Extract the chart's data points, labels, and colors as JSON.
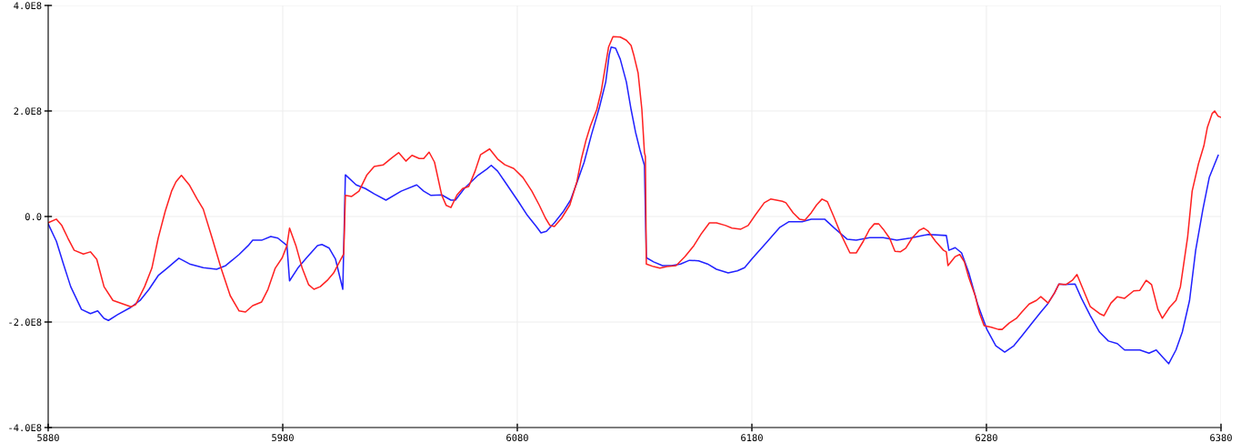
{
  "chart_data": {
    "type": "line",
    "xlim": [
      5880,
      6380
    ],
    "xticks": [
      5880,
      5980,
      6080,
      6180,
      6280,
      6380
    ],
    "ylim": [
      -400000000.0,
      400000000.0
    ],
    "yticks": [
      {
        "value": -400000000.0,
        "label": "-4.0E8"
      },
      {
        "value": -200000000.0,
        "label": "-2.0E8"
      },
      {
        "value": 0,
        "label": "0.0"
      },
      {
        "value": 200000000.0,
        "label": "2.0E8"
      },
      {
        "value": 400000000.0,
        "label": "4.0E8"
      }
    ],
    "grid": true,
    "marker": "none",
    "line_style": "solid",
    "series": [
      {
        "color": "#2222ff",
        "x": [
          5880,
          5883.5,
          5886.5,
          5889.6,
          5894.2,
          5898,
          5901.1,
          5903.8,
          5905.7,
          5909.6,
          5915.3,
          5919.2,
          5923,
          5926.9,
          5930.7,
          5935.7,
          5940.3,
          5946.1,
          5951.8,
          5955.7,
          5961.4,
          5965.3,
          5967.2,
          5971,
          5974.9,
          5977.9,
          5981.8,
          5982.9,
          5986.4,
          5990.2,
          5994.8,
          5996.7,
          5999.8,
          6002.5,
          6005.6,
          6006.7,
          6011.3,
          6015.2,
          6019,
          6024,
          6030.5,
          6037.1,
          6040.1,
          6043.2,
          6047.8,
          6051.7,
          6053.6,
          6057.4,
          6063.2,
          6067,
          6068.9,
          6071.6,
          6074.7,
          6080.5,
          6084.3,
          6088.1,
          6090.1,
          6092.4,
          6095.8,
          6099.7,
          6102.7,
          6105.4,
          6108.5,
          6111.6,
          6115,
          6117.7,
          6119.2,
          6120,
          6121.9,
          6123.9,
          6126.5,
          6128.5,
          6130.4,
          6132.3,
          6134.2,
          6135,
          6138.1,
          6141.9,
          6145.7,
          6149.6,
          6153.4,
          6157.3,
          6161.1,
          6164.9,
          6169.9,
          6173.8,
          6176.9,
          6180.3,
          6186.1,
          6191.8,
          6195.7,
          6201.4,
          6205.3,
          6211,
          6214.9,
          6220.6,
          6224.5,
          6230.2,
          6236,
          6241.8,
          6247.5,
          6255.2,
          6262.9,
          6264,
          6266.7,
          6269.4,
          6272.5,
          6276.3,
          6280.2,
          6284,
          6287.8,
          6291.7,
          6295.5,
          6299.4,
          6303.2,
          6305.9,
          6309,
          6310.9,
          6312.8,
          6317.8,
          6320.5,
          6324.3,
          6328.2,
          6332,
          6335.8,
          6338.9,
          6345.4,
          6349.3,
          6352.4,
          6355,
          6357.7,
          6360.8,
          6363.5,
          6366.6,
          6369.2,
          6372.3,
          6375,
          6378.8
        ],
        "values": [
          -14000000.0,
          -47000000.0,
          -90000000.0,
          -133000000.0,
          -176000000.0,
          -184000000.0,
          -179000000.0,
          -193000000.0,
          -197000000.0,
          -186000000.0,
          -172000000.0,
          -159000000.0,
          -138000000.0,
          -112000000.0,
          -98000000.0,
          -79000000.0,
          -90000000.0,
          -97000000.0,
          -100000000.0,
          -93000000.0,
          -72000000.0,
          -55000000.0,
          -45000000.0,
          -45000000.0,
          -38000000.0,
          -41000000.0,
          -55000000.0,
          -122000000.0,
          -98000000.0,
          -78000000.0,
          -55000000.0,
          -53000000.0,
          -60000000.0,
          -81000000.0,
          -138000000.0,
          79000000.0,
          60000000.0,
          53000000.0,
          43000000.0,
          31000000.0,
          48000000.0,
          60000000.0,
          48000000.0,
          40000000.0,
          41000000.0,
          31000000.0,
          31000000.0,
          53000000.0,
          78000000.0,
          90000000.0,
          97000000.0,
          86000000.0,
          66000000.0,
          28000000.0,
          2000000.0,
          -19000000.0,
          -31000000.0,
          -28000000.0,
          -12000000.0,
          10000000.0,
          31000000.0,
          64000000.0,
          103000000.0,
          155000000.0,
          207000000.0,
          255000000.0,
          307000000.0,
          321000000.0,
          319000000.0,
          298000000.0,
          255000000.0,
          203000000.0,
          160000000.0,
          126000000.0,
          97000000.0,
          -78000000.0,
          -86000000.0,
          -93000000.0,
          -93000000.0,
          -90000000.0,
          -83000000.0,
          -84000000.0,
          -90000000.0,
          -100000000.0,
          -107000000.0,
          -103000000.0,
          -97000000.0,
          -79000000.0,
          -50000000.0,
          -21000000.0,
          -10000000.0,
          -10000000.0,
          -5000000.0,
          -5000000.0,
          -21000000.0,
          -43000000.0,
          -45000000.0,
          -40000000.0,
          -40000000.0,
          -45000000.0,
          -41000000.0,
          -34000000.0,
          -36000000.0,
          -64000000.0,
          -59000000.0,
          -69000000.0,
          -107000000.0,
          -167000000.0,
          -214000000.0,
          -245000000.0,
          -257000000.0,
          -245000000.0,
          -224000000.0,
          -202000000.0,
          -181000000.0,
          -167000000.0,
          -145000000.0,
          -128000000.0,
          -129000000.0,
          -128000000.0,
          -155000000.0,
          -188000000.0,
          -219000000.0,
          -236000000.0,
          -241000000.0,
          -253000000.0,
          -253000000.0,
          -259000000.0,
          -253000000.0,
          -266000000.0,
          -279000000.0,
          -253000000.0,
          -219000000.0,
          -159000000.0,
          -64000000.0,
          14000000.0,
          74000000.0,
          116000000.0
        ]
      },
      {
        "color": "#ff2222",
        "x": [
          5880,
          5883.5,
          5885.8,
          5888.4,
          5891.1,
          5895,
          5898,
          5900.7,
          5903.8,
          5907.6,
          5915.3,
          5917.3,
          5921.1,
          5924.2,
          5926.9,
          5929.9,
          5932.6,
          5934.5,
          5936.8,
          5940.3,
          5943.4,
          5946.1,
          5949.9,
          5953.7,
          5957.6,
          5961.4,
          5964.1,
          5967.2,
          5971,
          5973.7,
          5976.8,
          5979.8,
          5981.8,
          5982.9,
          5985.6,
          5988.3,
          5991,
          5993.3,
          5996,
          5999,
          6001.7,
          6004.8,
          6006,
          6006.7,
          6009.4,
          6012.5,
          6015.9,
          6019,
          6022.9,
          6026.7,
          6029.4,
          6032.5,
          6035.1,
          6038.2,
          6040.1,
          6042.4,
          6044.7,
          6047.8,
          6049.7,
          6051.7,
          6054.3,
          6056.7,
          6059.3,
          6062,
          6064.3,
          6068.2,
          6071.6,
          6074.7,
          6078.5,
          6082.4,
          6086.2,
          6089.3,
          6092,
          6093.9,
          6095.8,
          6098.9,
          6102.4,
          6105.4,
          6107.3,
          6109.2,
          6111.2,
          6113.9,
          6115.8,
          6118.9,
          6120.8,
          6123.9,
          6126.5,
          6128.5,
          6129.6,
          6131.5,
          6133.1,
          6134.2,
          6134.6,
          6135,
          6138.1,
          6140.8,
          6143.8,
          6147.7,
          6151.5,
          6155.3,
          6158.4,
          6161.9,
          6164.9,
          6168.8,
          6171.5,
          6175.3,
          6178.4,
          6181.5,
          6185.3,
          6188,
          6193,
          6194.5,
          6197.6,
          6200.3,
          6202.6,
          6205.3,
          6207.6,
          6209.9,
          6212.2,
          6214.9,
          6217.9,
          6221.8,
          6224.5,
          6227.5,
          6230.2,
          6232.2,
          6234.1,
          6236,
          6238.7,
          6241,
          6243.3,
          6245.6,
          6248.3,
          6251.4,
          6253.3,
          6255.2,
          6258.3,
          6261.7,
          6262.9,
          6263.6,
          6266.7,
          6268.6,
          6270.6,
          6272.5,
          6275.2,
          6277.1,
          6279,
          6282.1,
          6285.1,
          6286.7,
          6289.7,
          6292.8,
          6295.1,
          6298.2,
          6301.3,
          6303.2,
          6306.3,
          6309,
          6310.9,
          6313.9,
          6316.6,
          6318.6,
          6321.2,
          6324.3,
          6328.2,
          6330.1,
          6333.1,
          6335.8,
          6338.9,
          6342.8,
          6345.4,
          6348.1,
          6350.4,
          6353.1,
          6355,
          6358.1,
          6360.8,
          6362.7,
          6365.8,
          6367.7,
          6370.4,
          6372.7,
          6374.2,
          6376.2,
          6377.3,
          6378.8,
          6380
        ],
        "values": [
          -12000000.0,
          -5000000.0,
          -17000000.0,
          -41000000.0,
          -64000000.0,
          -71000000.0,
          -67000000.0,
          -81000000.0,
          -133000000.0,
          -159000000.0,
          -171000000.0,
          -167000000.0,
          -133000000.0,
          -98000000.0,
          -41000000.0,
          10000000.0,
          48000000.0,
          66000000.0,
          78000000.0,
          59000000.0,
          34000000.0,
          14000000.0,
          -41000000.0,
          -98000000.0,
          -150000000.0,
          -179000000.0,
          -181000000.0,
          -169000000.0,
          -162000000.0,
          -138000000.0,
          -98000000.0,
          -78000000.0,
          -55000000.0,
          -22000000.0,
          -55000000.0,
          -98000000.0,
          -129000000.0,
          -138000000.0,
          -133000000.0,
          -121000000.0,
          -107000000.0,
          -81000000.0,
          -71000000.0,
          40000000.0,
          38000000.0,
          48000000.0,
          79000000.0,
          95000000.0,
          98000000.0,
          112000000.0,
          121000000.0,
          105000000.0,
          116000000.0,
          110000000.0,
          110000000.0,
          122000000.0,
          103000000.0,
          40000000.0,
          21000000.0,
          17000000.0,
          41000000.0,
          53000000.0,
          57000000.0,
          86000000.0,
          117000000.0,
          128000000.0,
          109000000.0,
          98000000.0,
          91000000.0,
          74000000.0,
          48000000.0,
          22000000.0,
          -3000000.0,
          -17000000.0,
          -19000000.0,
          -3000000.0,
          22000000.0,
          66000000.0,
          109000000.0,
          143000000.0,
          172000000.0,
          203000000.0,
          238000000.0,
          321000000.0,
          341000000.0,
          340000000.0,
          334000000.0,
          324000000.0,
          307000000.0,
          272000000.0,
          203000000.0,
          121000000.0,
          114000000.0,
          -90000000.0,
          -95000000.0,
          -98000000.0,
          -95000000.0,
          -93000000.0,
          -76000000.0,
          -55000000.0,
          -33000000.0,
          -12000000.0,
          -12000000.0,
          -17000000.0,
          -22000000.0,
          -24000000.0,
          -17000000.0,
          3000000.0,
          26000000.0,
          33000000.0,
          29000000.0,
          26000000.0,
          7000000.0,
          -5000000.0,
          -7000000.0,
          7000000.0,
          22000000.0,
          33000000.0,
          28000000.0,
          0.0,
          -33000000.0,
          -69000000.0,
          -69000000.0,
          -47000000.0,
          -24000000.0,
          -14000000.0,
          -14000000.0,
          -24000000.0,
          -41000000.0,
          -66000000.0,
          -67000000.0,
          -60000000.0,
          -41000000.0,
          -26000000.0,
          -22000000.0,
          -28000000.0,
          -47000000.0,
          -64000000.0,
          -67000000.0,
          -93000000.0,
          -76000000.0,
          -72000000.0,
          -86000000.0,
          -116000000.0,
          -150000000.0,
          -184000000.0,
          -207000000.0,
          -210000000.0,
          -214000000.0,
          -214000000.0,
          -202000000.0,
          -193000000.0,
          -181000000.0,
          -166000000.0,
          -159000000.0,
          -152000000.0,
          -164000000.0,
          -145000000.0,
          -128000000.0,
          -129000000.0,
          -121000000.0,
          -110000000.0,
          -138000000.0,
          -171000000.0,
          -184000000.0,
          -188000000.0,
          -164000000.0,
          -152000000.0,
          -155000000.0,
          -141000000.0,
          -140000000.0,
          -121000000.0,
          -129000000.0,
          -176000000.0,
          -193000000.0,
          -172000000.0,
          -159000000.0,
          -133000000.0,
          -38000000.0,
          48000000.0,
          100000000.0,
          134000000.0,
          169000000.0,
          195000000.0,
          200000000.0,
          190000000.0,
          188000000.0
        ]
      }
    ]
  }
}
